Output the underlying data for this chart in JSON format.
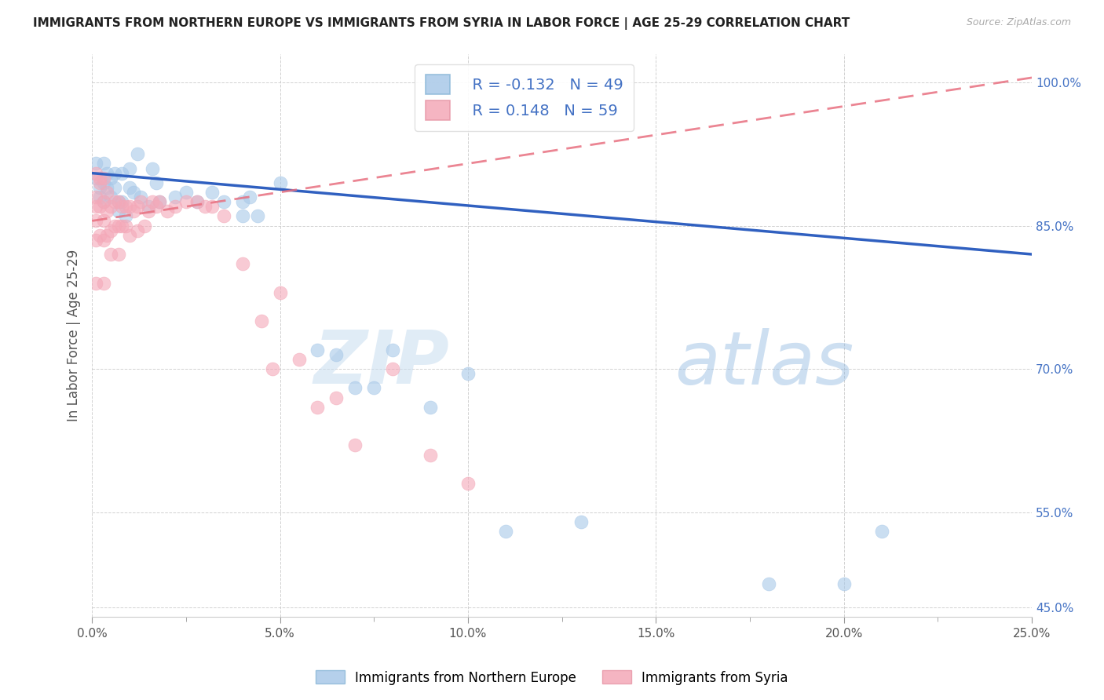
{
  "title": "IMMIGRANTS FROM NORTHERN EUROPE VS IMMIGRANTS FROM SYRIA IN LABOR FORCE | AGE 25-29 CORRELATION CHART",
  "source": "Source: ZipAtlas.com",
  "ylabel": "In Labor Force | Age 25-29",
  "legend_labels": [
    "Immigrants from Northern Europe",
    "Immigrants from Syria"
  ],
  "blue_R": -0.132,
  "blue_N": 49,
  "pink_R": 0.148,
  "pink_N": 59,
  "blue_color": "#a8c8e8",
  "pink_color": "#f4a8b8",
  "blue_line_color": "#3060c0",
  "pink_line_color": "#e87080",
  "watermark_ZIP": "ZIP",
  "watermark_atlas": "atlas",
  "xmin": 0.0,
  "xmax": 0.25,
  "ymin": 0.44,
  "ymax": 1.03,
  "blue_line_x0": 0.0,
  "blue_line_y0": 0.905,
  "blue_line_x1": 0.25,
  "blue_line_y1": 0.82,
  "pink_line_x0": 0.0,
  "pink_line_y0": 0.855,
  "pink_line_x1": 0.25,
  "pink_line_y1": 1.005,
  "blue_scatter_x": [
    0.001,
    0.001,
    0.002,
    0.002,
    0.003,
    0.003,
    0.003,
    0.004,
    0.004,
    0.005,
    0.005,
    0.006,
    0.006,
    0.007,
    0.007,
    0.008,
    0.008,
    0.009,
    0.01,
    0.01,
    0.011,
    0.012,
    0.013,
    0.015,
    0.016,
    0.017,
    0.018,
    0.022,
    0.025,
    0.028,
    0.032,
    0.035,
    0.04,
    0.04,
    0.042,
    0.044,
    0.05,
    0.06,
    0.065,
    0.07,
    0.075,
    0.08,
    0.09,
    0.1,
    0.11,
    0.13,
    0.18,
    0.2,
    0.21
  ],
  "blue_scatter_y": [
    0.915,
    0.9,
    0.89,
    0.88,
    0.915,
    0.895,
    0.875,
    0.905,
    0.89,
    0.9,
    0.88,
    0.905,
    0.89,
    0.875,
    0.865,
    0.905,
    0.875,
    0.86,
    0.91,
    0.89,
    0.885,
    0.925,
    0.88,
    0.87,
    0.91,
    0.895,
    0.875,
    0.88,
    0.885,
    0.875,
    0.885,
    0.875,
    0.875,
    0.86,
    0.88,
    0.86,
    0.895,
    0.72,
    0.715,
    0.68,
    0.68,
    0.72,
    0.66,
    0.695,
    0.53,
    0.54,
    0.475,
    0.475,
    0.53
  ],
  "pink_scatter_x": [
    0.001,
    0.001,
    0.001,
    0.001,
    0.001,
    0.001,
    0.002,
    0.002,
    0.002,
    0.002,
    0.003,
    0.003,
    0.003,
    0.003,
    0.003,
    0.004,
    0.004,
    0.004,
    0.005,
    0.005,
    0.005,
    0.006,
    0.006,
    0.007,
    0.007,
    0.007,
    0.008,
    0.008,
    0.009,
    0.009,
    0.01,
    0.01,
    0.011,
    0.012,
    0.012,
    0.013,
    0.014,
    0.015,
    0.016,
    0.017,
    0.018,
    0.02,
    0.022,
    0.025,
    0.028,
    0.03,
    0.032,
    0.035,
    0.04,
    0.045,
    0.048,
    0.05,
    0.055,
    0.06,
    0.065,
    0.07,
    0.08,
    0.09,
    0.1
  ],
  "pink_scatter_y": [
    0.87,
    0.88,
    0.855,
    0.905,
    0.79,
    0.835,
    0.9,
    0.87,
    0.84,
    0.895,
    0.9,
    0.875,
    0.855,
    0.835,
    0.79,
    0.885,
    0.865,
    0.84,
    0.87,
    0.845,
    0.82,
    0.875,
    0.85,
    0.875,
    0.85,
    0.82,
    0.87,
    0.85,
    0.87,
    0.85,
    0.87,
    0.84,
    0.865,
    0.87,
    0.845,
    0.875,
    0.85,
    0.865,
    0.875,
    0.87,
    0.875,
    0.865,
    0.87,
    0.875,
    0.875,
    0.87,
    0.87,
    0.86,
    0.81,
    0.75,
    0.7,
    0.78,
    0.71,
    0.66,
    0.67,
    0.62,
    0.7,
    0.61,
    0.58
  ],
  "yticks": [
    0.45,
    0.55,
    0.7,
    0.85,
    1.0
  ],
  "ytick_labels": [
    "45.0%",
    "55.0%",
    "70.0%",
    "85.0%",
    "100.0%"
  ],
  "xticks": [
    0.0,
    0.025,
    0.05,
    0.075,
    0.1,
    0.125,
    0.15,
    0.175,
    0.2,
    0.225,
    0.25
  ],
  "xtick_labels": [
    "",
    "",
    "",
    "",
    "",
    "",
    "",
    "",
    "",
    "",
    ""
  ],
  "xgrid_ticks": [
    0.0,
    0.05,
    0.1,
    0.15,
    0.2,
    0.25
  ],
  "xaxis_labels": [
    "0.0%",
    "5.0%",
    "10.0%",
    "15.0%",
    "20.0%",
    "25.0%"
  ]
}
